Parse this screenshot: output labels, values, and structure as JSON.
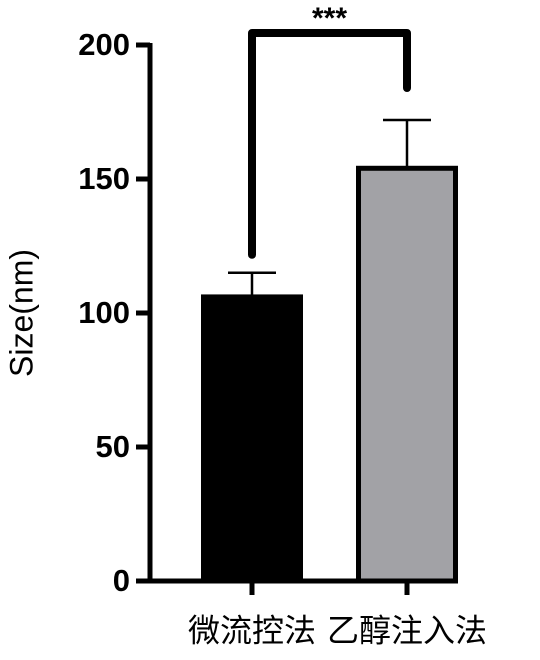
{
  "chart_data": {
    "type": "bar",
    "ylabel": "Size(nm)",
    "categories": [
      "微流控法",
      "乙醇注入法"
    ],
    "values": [
      106,
      154
    ],
    "errors": [
      9,
      18
    ],
    "colors": [
      "#000000",
      "#a2a2a6"
    ],
    "ylim": [
      0,
      200
    ],
    "yticks": [
      0,
      50,
      100,
      150,
      200
    ],
    "annotation": "***"
  }
}
